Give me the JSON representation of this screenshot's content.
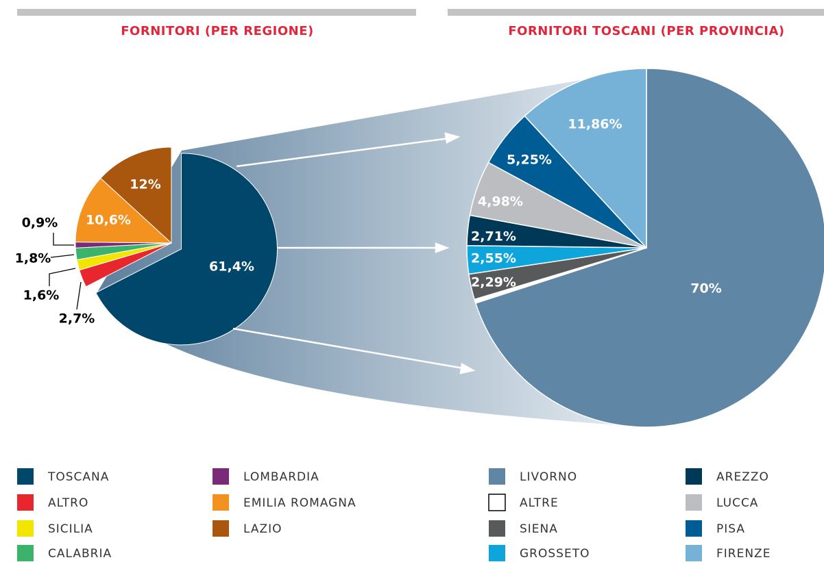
{
  "chart_data": [
    {
      "type": "pie",
      "title": "FORNITORI (PER REGIONE)",
      "categories": [
        "TOSCANA",
        "ALTRO",
        "SICILIA",
        "CALABRIA",
        "LOMBARDIA",
        "EMILIA ROMAGNA",
        "LAZIO"
      ],
      "values": [
        61.4,
        2.7,
        1.6,
        1.8,
        0.9,
        10.6,
        12
      ],
      "value_labels": [
        "61,4%",
        "2,7%",
        "1,6%",
        "1,8%",
        "0,9%",
        "10,6%",
        "12%"
      ],
      "colors": [
        "#00476b",
        "#e8262e",
        "#f2e500",
        "#3cb36c",
        "#7b2a78",
        "#f4921f",
        "#a9560e"
      ]
    },
    {
      "type": "pie",
      "title": "FORNITORI TOSCANI (PER PROVINCIA)",
      "categories": [
        "LIVORNO",
        "ALTRE",
        "SIENA",
        "GROSSETO",
        "AREZZO",
        "LUCCA",
        "PISA",
        "FIRENZE"
      ],
      "values": [
        70,
        0.36,
        2.29,
        2.55,
        2.71,
        4.98,
        5.25,
        11.86
      ],
      "value_labels": [
        "70%",
        null,
        "2,29%",
        "2,55%",
        "2,71%",
        "4,98%",
        "5,25%",
        "11,86%"
      ],
      "colors": [
        "#5f86a5",
        "#ffffff",
        "#58595b",
        "#0ea4dc",
        "#003957",
        "#bcbdc0",
        "#005c94",
        "#76b1d8"
      ]
    }
  ]
}
